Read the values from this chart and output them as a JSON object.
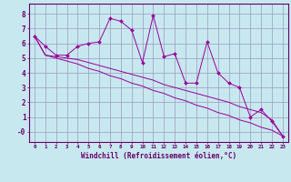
{
  "xlabel": "Windchill (Refroidissement éolien,°C)",
  "x": [
    0,
    1,
    2,
    3,
    4,
    5,
    6,
    7,
    8,
    9,
    10,
    11,
    12,
    13,
    14,
    15,
    16,
    17,
    18,
    19,
    20,
    21,
    22,
    23
  ],
  "line1": [
    6.5,
    5.8,
    5.2,
    5.2,
    5.8,
    6.0,
    6.1,
    7.7,
    7.5,
    6.9,
    4.7,
    7.9,
    5.1,
    5.3,
    3.3,
    3.3,
    6.1,
    4.0,
    3.3,
    3.0,
    1.0,
    1.5,
    0.7,
    -0.3
  ],
  "line2": [
    6.5,
    5.2,
    5.0,
    4.8,
    4.6,
    4.3,
    4.1,
    3.8,
    3.6,
    3.3,
    3.1,
    2.8,
    2.6,
    2.3,
    2.1,
    1.8,
    1.6,
    1.3,
    1.1,
    0.8,
    0.6,
    0.3,
    0.1,
    -0.3
  ],
  "line3": [
    6.5,
    5.2,
    5.1,
    5.0,
    4.9,
    4.7,
    4.5,
    4.3,
    4.1,
    3.9,
    3.7,
    3.5,
    3.2,
    3.0,
    2.8,
    2.6,
    2.4,
    2.2,
    2.0,
    1.7,
    1.5,
    1.3,
    0.8,
    -0.3
  ],
  "line_color": "#990099",
  "bg_color": "#c8e8f0",
  "grid_color": "#9999bb",
  "xlim": [
    -0.5,
    23.5
  ],
  "ylim": [
    -0.7,
    8.7
  ],
  "yticks": [
    0,
    1,
    2,
    3,
    4,
    5,
    6,
    7,
    8
  ],
  "ytick_labels": [
    "-0",
    "1",
    "2",
    "3",
    "4",
    "5",
    "6",
    "7",
    "8"
  ]
}
